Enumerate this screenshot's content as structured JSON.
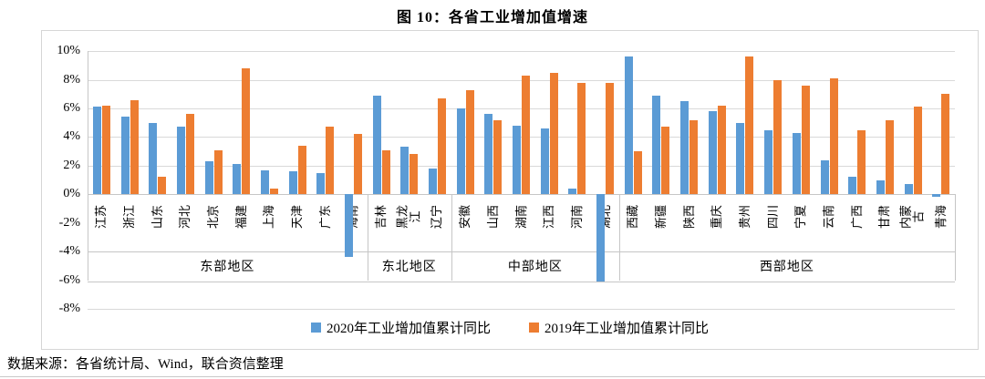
{
  "title": "图 10：各省工业增加值增速",
  "source_note": "数据来源：各省统计局、Wind，联合资信整理",
  "colors": {
    "bar_2020": "#5B9BD5",
    "bar_2019": "#ED7D31",
    "gridline": "#D9D9D9",
    "band_border": "#C6C6C6",
    "box_border": "#D6D6D6"
  },
  "chart_data": {
    "type": "bar",
    "title": "图 10：各省工业增加值增速",
    "xlabel": "",
    "ylabel": "",
    "ylim": [
      -8,
      10
    ],
    "ytick_step": 2,
    "ytick_labels": [
      "10%",
      "8%",
      "6%",
      "4%",
      "2%",
      "0%",
      "-2%",
      "-4%",
      "-6%",
      "-8%"
    ],
    "grid": true,
    "legend_position": "bottom",
    "categories": [
      "江苏",
      "浙江",
      "山东",
      "河北",
      "北京",
      "福建",
      "上海",
      "天津",
      "广东",
      "海南",
      "吉林",
      "黑龙江",
      "辽宁",
      "安徽",
      "山西",
      "湖南",
      "江西",
      "河南",
      "湖北",
      "西藏",
      "新疆",
      "陕西",
      "重庆",
      "贵州",
      "四川",
      "宁夏",
      "云南",
      "广西",
      "甘肃",
      "内蒙古",
      "青海"
    ],
    "groups": [
      {
        "label": "东部地区",
        "span": 10
      },
      {
        "label": "东北地区",
        "span": 3
      },
      {
        "label": "中部地区",
        "span": 6
      },
      {
        "label": "西部地区",
        "span": 12
      }
    ],
    "series": [
      {
        "name": "2020年工业增加值累计同比",
        "color": "#5B9BD5",
        "values": [
          6.1,
          5.4,
          5.0,
          4.7,
          2.3,
          2.1,
          1.7,
          1.6,
          1.5,
          -4.4,
          6.9,
          3.3,
          1.8,
          6.0,
          5.6,
          4.8,
          4.6,
          0.4,
          -6.1,
          9.6,
          6.9,
          6.5,
          5.8,
          5.0,
          4.5,
          4.3,
          2.4,
          1.2,
          1.0,
          0.7,
          -0.2
        ]
      },
      {
        "name": "2019年工业增加值累计同比",
        "color": "#ED7D31",
        "values": [
          6.2,
          6.6,
          1.2,
          5.6,
          3.1,
          8.8,
          0.4,
          3.4,
          4.7,
          4.2,
          3.1,
          2.8,
          6.7,
          7.3,
          5.2,
          8.3,
          8.5,
          7.8,
          7.8,
          3.0,
          4.7,
          5.2,
          6.2,
          9.6,
          8.0,
          7.6,
          8.1,
          4.5,
          5.2,
          6.1,
          7.0
        ]
      }
    ]
  }
}
